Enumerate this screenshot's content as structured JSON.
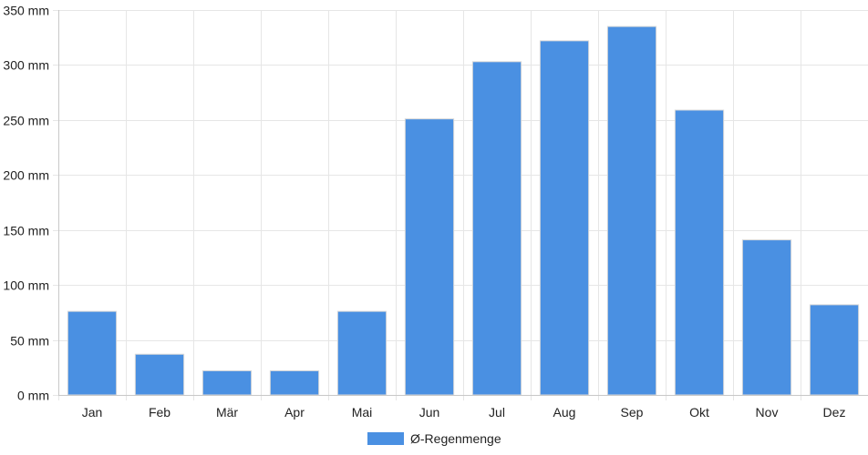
{
  "chart_data": {
    "type": "bar",
    "categories": [
      "Jan",
      "Feb",
      "Mär",
      "Apr",
      "Mai",
      "Jun",
      "Jul",
      "Aug",
      "Sep",
      "Okt",
      "Nov",
      "Dez"
    ],
    "series": [
      {
        "name": "Ø-Regenmenge",
        "values": [
          76,
          37,
          22,
          22,
          76,
          251,
          303,
          322,
          335,
          259,
          141,
          82
        ],
        "color": "#4a90e2"
      }
    ],
    "ylim": [
      0,
      350
    ],
    "y_ticks": [
      0,
      50,
      100,
      150,
      200,
      250,
      300,
      350
    ],
    "y_tick_labels": [
      "0 mm",
      "50 mm",
      "100 mm",
      "150 mm",
      "200 mm",
      "250 mm",
      "300 mm",
      "350 mm"
    ],
    "grid": true,
    "legend_position": "bottom-center"
  },
  "colors": {
    "grid": "#e6e6e6",
    "axis": "#c8c8c8",
    "bar_stroke": "#d9d9d9"
  }
}
